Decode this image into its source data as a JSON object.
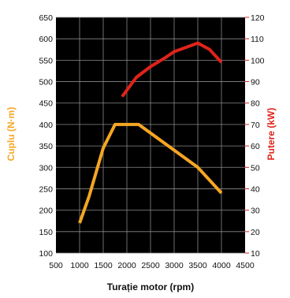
{
  "chart_data": {
    "type": "line",
    "xlabel": "Turație motor (rpm)",
    "ylabel_left": "Cuplu (N·m)",
    "ylabel_right": "Putere (kW)",
    "xlim": [
      500,
      4500
    ],
    "ylim_left": [
      100,
      650
    ],
    "ylim_right": [
      10,
      120
    ],
    "x_ticks": [
      500,
      1000,
      1500,
      2000,
      2500,
      3000,
      3500,
      4000,
      4500
    ],
    "y_left_ticks": [
      100,
      150,
      200,
      250,
      300,
      350,
      400,
      450,
      500,
      550,
      600,
      650
    ],
    "y_right_ticks": [
      10,
      20,
      30,
      40,
      50,
      60,
      70,
      80,
      90,
      100,
      110,
      120
    ],
    "grid": true,
    "series": [
      {
        "axis": "left",
        "color": "#F5A623",
        "x": [
          1000,
          1200,
          1500,
          1750,
          2250,
          3500,
          4000
        ],
        "values": [
          170,
          232,
          345,
          400,
          400,
          300,
          240
        ]
      },
      {
        "axis": "right",
        "color": "#E0231A",
        "x": [
          1900,
          2200,
          2500,
          2800,
          3000,
          3250,
          3500,
          3750,
          4000
        ],
        "values": [
          83,
          92,
          97,
          101,
          104,
          106,
          108,
          105,
          99
        ]
      }
    ]
  },
  "colors": {
    "background": "#000000",
    "grid": "#8a8a8a",
    "torque": "#F5A623",
    "power": "#E0231A"
  }
}
